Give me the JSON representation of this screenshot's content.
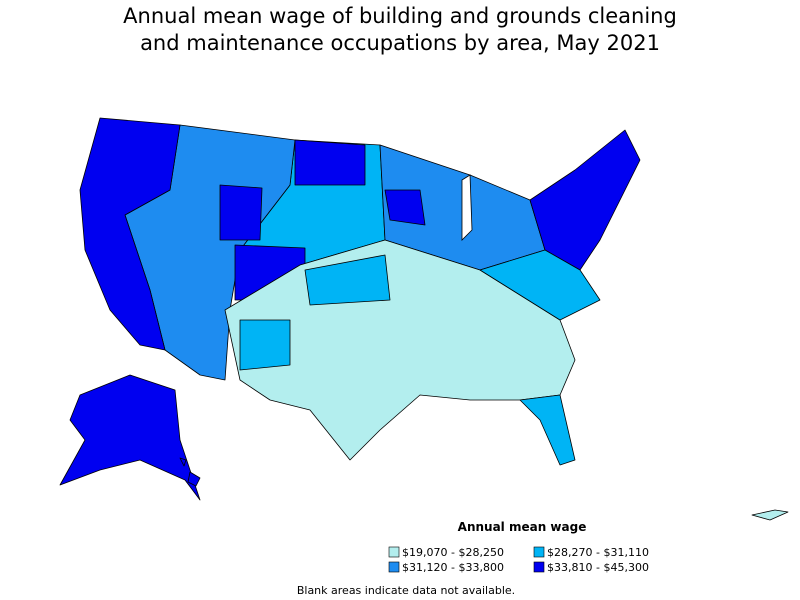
{
  "title_lines": [
    "Annual mean wage of building and grounds cleaning",
    "and maintenance occupations by area, May 2021"
  ],
  "legend": {
    "title": "Annual mean wage",
    "items": [
      {
        "label": "$19,070 - $28,250",
        "color": "#b3eeee"
      },
      {
        "label": "$28,270 - $31,110",
        "color": "#00b4f5"
      },
      {
        "label": "$31,120 - $33,800",
        "color": "#1e8cf0"
      },
      {
        "label": "$33,810 - $45,300",
        "color": "#0000f0"
      }
    ]
  },
  "footnote": "Blank areas indicate data not available."
}
